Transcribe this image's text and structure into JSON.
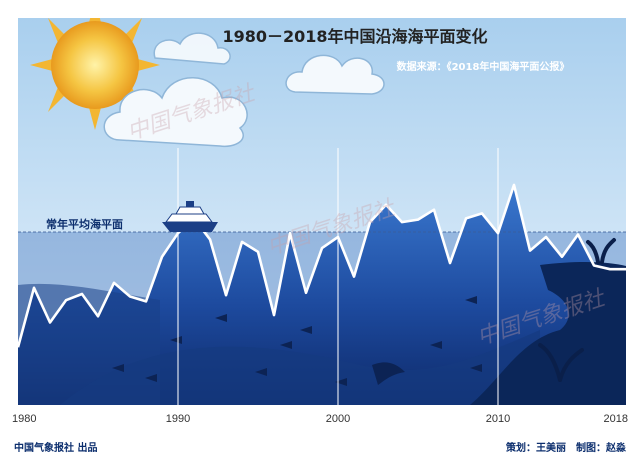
{
  "header": {
    "title": "1980－2018年中国沿海海平面变化",
    "source": "数据来源：《2018年中国海平面公报》"
  },
  "chart_data": {
    "type": "area",
    "title": "1980－2018年中国沿海海平面变化",
    "x": [
      1980,
      1981,
      1982,
      1983,
      1984,
      1985,
      1986,
      1987,
      1988,
      1989,
      1990,
      1991,
      1992,
      1993,
      1994,
      1995,
      1996,
      1997,
      1998,
      1999,
      2000,
      2001,
      2002,
      2003,
      2004,
      2005,
      2006,
      2007,
      2008,
      2009,
      2010,
      2011,
      2012,
      2013,
      2014,
      2015,
      2016,
      2017,
      2018
    ],
    "values": [
      -93,
      -45,
      -73,
      -55,
      -50,
      -68,
      -41,
      -52,
      -56,
      -20,
      -1,
      11,
      -6,
      -51,
      -8,
      -16,
      -67,
      -1,
      -49,
      -13,
      -4,
      -36,
      8,
      22,
      8,
      10,
      18,
      -25,
      11,
      15,
      -1,
      38,
      -15,
      -4,
      -20,
      -2,
      -27,
      -30,
      -30
    ],
    "xticks": [
      1980,
      1990,
      2000,
      2010,
      2018
    ],
    "xlim": [
      1980,
      2018
    ],
    "reference_line": {
      "value": 0,
      "label": "常年平均海平面"
    },
    "grid_x": true,
    "colors": {
      "fill_top": "#2a5fb8",
      "fill_bottom": "#0f2b72",
      "line": "#ffffff",
      "sky_top": "#9cc7e8",
      "sky_bottom": "#e6f2fb"
    }
  },
  "footer": {
    "publisher": "中国气象报社 出品",
    "credits": "策划：王美丽　制图：赵淼"
  },
  "watermarks": [
    "中国气象报社",
    "中国气象报社",
    "中国气象报社"
  ]
}
